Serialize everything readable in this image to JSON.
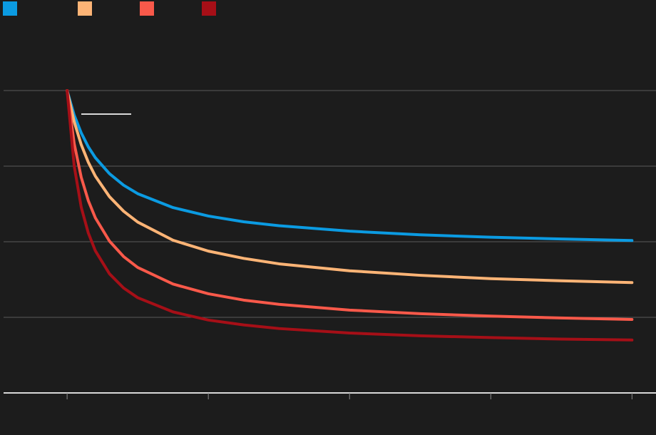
{
  "chart_data": {
    "type": "line",
    "x": [
      0,
      0.05,
      0.1,
      0.15,
      0.2,
      0.3,
      0.4,
      0.5,
      0.75,
      1,
      1.25,
      1.5,
      2,
      2.5,
      3,
      3.5,
      4
    ],
    "series": [
      {
        "color": "#0b9be2",
        "values": [
          100,
          91.9,
          86.0,
          81.4,
          77.8,
          72.5,
          68.7,
          65.9,
          61.3,
          58.5,
          56.6,
          55.3,
          53.5,
          52.3,
          51.5,
          50.9,
          50.4
        ]
      },
      {
        "color": "#fdb476",
        "values": [
          100,
          89.7,
          82.1,
          76.3,
          71.7,
          64.9,
          60.1,
          56.5,
          50.5,
          46.9,
          44.5,
          42.7,
          40.4,
          38.9,
          37.8,
          37.1,
          36.5
        ]
      },
      {
        "color": "#f9594a",
        "values": [
          100,
          82.5,
          71.3,
          63.6,
          57.9,
          50.2,
          45.1,
          41.5,
          36.0,
          32.8,
          30.7,
          29.3,
          27.4,
          26.2,
          25.4,
          24.8,
          24.3
        ]
      },
      {
        "color": "#a60f17",
        "values": [
          100,
          75.1,
          61.4,
          52.9,
          47.0,
          39.4,
          34.7,
          31.5,
          26.8,
          24.1,
          22.5,
          21.3,
          19.8,
          18.9,
          18.3,
          17.8,
          17.5
        ]
      }
    ],
    "xlim": [
      -0.45,
      4.17
    ],
    "xticks": [
      0,
      1,
      2,
      3,
      4
    ],
    "ylim": [
      0,
      100
    ],
    "yticks": [
      0,
      25,
      50,
      75,
      100
    ],
    "grid": true
  }
}
